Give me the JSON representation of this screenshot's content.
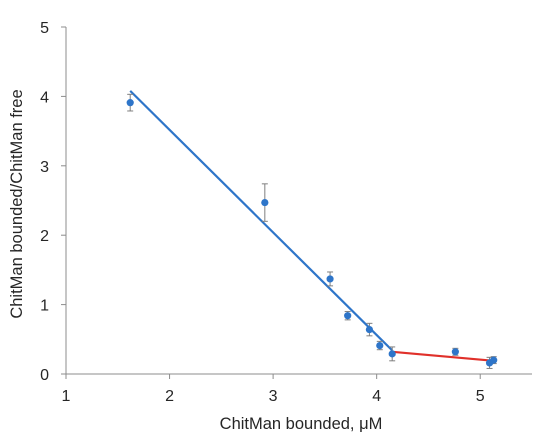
{
  "chart_data": {
    "type": "scatter",
    "title": "",
    "xlabel": "ChitMan bounded, μM",
    "ylabel": "ChitMan bounded/ChitMan free",
    "xlim": [
      1,
      5.5
    ],
    "ylim": [
      0,
      5
    ],
    "x_ticks": [
      "1",
      "2",
      "3",
      "4",
      "5"
    ],
    "y_ticks": [
      "0",
      "1",
      "2",
      "3",
      "4",
      "5"
    ],
    "grid": false,
    "legend": "none",
    "series": [
      {
        "kind": "points",
        "color": "#2e75c9",
        "points": [
          {
            "x": 1.62,
            "y": 3.91,
            "err": 0.12
          },
          {
            "x": 2.92,
            "y": 2.47,
            "err": 0.27
          },
          {
            "x": 3.55,
            "y": 1.37,
            "err": 0.1
          },
          {
            "x": 3.72,
            "y": 0.84,
            "err": 0.06
          },
          {
            "x": 3.93,
            "y": 0.64,
            "err": 0.09
          },
          {
            "x": 4.03,
            "y": 0.41,
            "err": 0.06
          },
          {
            "x": 4.15,
            "y": 0.29,
            "err": 0.1
          },
          {
            "x": 4.76,
            "y": 0.32,
            "err": 0.05
          },
          {
            "x": 5.09,
            "y": 0.16,
            "err": 0.08
          },
          {
            "x": 5.13,
            "y": 0.2,
            "err": 0.05
          }
        ]
      },
      {
        "kind": "trendline",
        "color": "#2e75c9",
        "x": [
          1.62,
          4.15
        ],
        "y": [
          4.08,
          0.34
        ]
      },
      {
        "kind": "trendline",
        "color": "#e0302a",
        "x": [
          4.15,
          5.13
        ],
        "y": [
          0.32,
          0.19
        ]
      }
    ]
  }
}
